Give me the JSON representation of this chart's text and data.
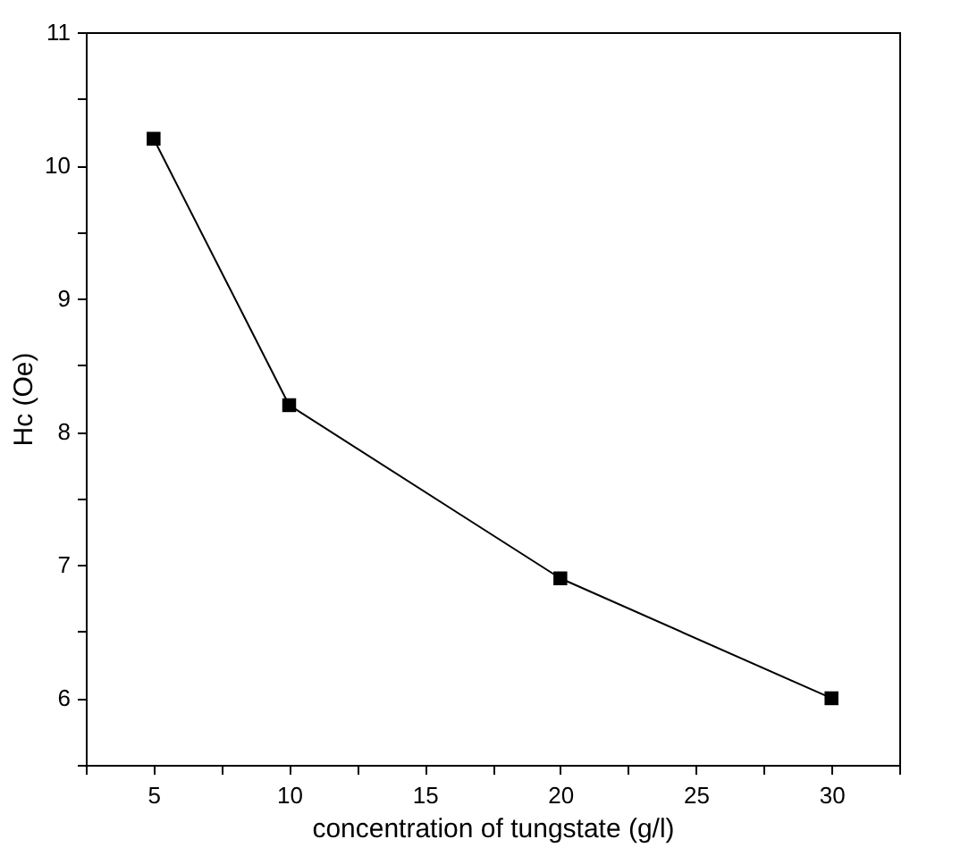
{
  "chart_data": {
    "type": "line",
    "xlabel": "concentration of tungstate (g/l)",
    "ylabel": "Hc (Oe)",
    "x": [
      5,
      10,
      20,
      30
    ],
    "series": [
      {
        "color": "#000000",
        "values": [
          10.2,
          8.2,
          6.9,
          6.0
        ]
      }
    ],
    "xlim": [
      2.5,
      32.5
    ],
    "xticks": [
      {
        "value": 2.5,
        "label": null
      },
      5,
      {
        "value": 7.5,
        "label": null
      },
      10,
      {
        "value": 12.5,
        "label": null
      },
      15,
      {
        "value": 17.5,
        "label": null
      },
      20,
      {
        "value": 22.5,
        "label": null
      },
      25,
      {
        "value": 27.5,
        "label": null
      },
      30,
      {
        "value": 32.5,
        "label": null
      }
    ],
    "ylim": [
      5.5,
      11
    ],
    "yticks": [
      {
        "value": 5.5,
        "label": null
      },
      6,
      {
        "value": 6.5,
        "label": null
      },
      7,
      {
        "value": 7.5,
        "label": null
      },
      8,
      {
        "value": 8.5,
        "label": null
      },
      9,
      {
        "value": 9.5,
        "label": null
      },
      10,
      {
        "value": 10.5,
        "label": null
      },
      11
    ],
    "marker": "square",
    "line_style": "solid",
    "grid": false
  }
}
